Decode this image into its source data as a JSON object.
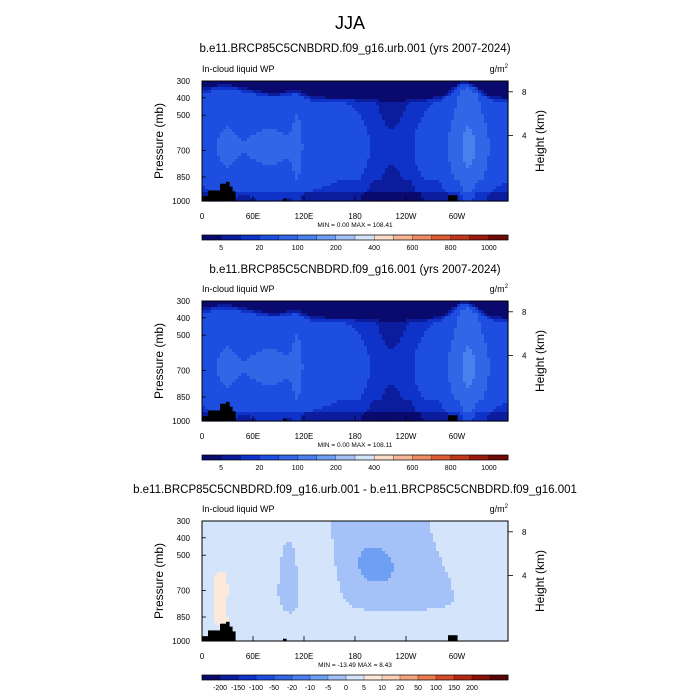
{
  "figure": {
    "title": "JJA"
  },
  "colors": {
    "seq": [
      "#0a0a6e",
      "#0b1d9c",
      "#0f33c8",
      "#1d4ee0",
      "#3166e6",
      "#4a80ee",
      "#6f9ff3",
      "#a4c2f7",
      "#d4e4fa",
      "#fbdcc8",
      "#f6b596",
      "#ee8b63",
      "#dd5c36",
      "#c2361c",
      "#9a1a0e",
      "#6e0a05"
    ],
    "diff": [
      "#0a0a6e",
      "#0b1d9c",
      "#0f33c8",
      "#1d4ee0",
      "#3166e6",
      "#4a80ee",
      "#6f9ff3",
      "#a4c2f7",
      "#d4e4fa",
      "#fde9da",
      "#fbd0b4",
      "#f4a57f",
      "#ea7a4f",
      "#d64b27",
      "#b52914",
      "#8a120a",
      "#5a0604"
    ],
    "terrain": "#000000"
  },
  "chart_data": [
    {
      "type": "heatmap",
      "title": "b.e11.BRCP85C5CNBDRD.f09_g16.urb.001 (yrs 2007-2024)",
      "variable": "In-cloud liquid WP",
      "units": "g/m",
      "units_exp": "2",
      "ylabel": "Pressure (mb)",
      "y2label": "Height (km)",
      "yticks": [
        "300",
        "400",
        "500",
        "700",
        "850",
        "1000"
      ],
      "y2ticks": [
        "8",
        "4"
      ],
      "xticks": [
        "0",
        "60E",
        "120E",
        "180",
        "120W",
        "60W"
      ],
      "minmax": "MIN =   0.00  MAX = 108.41",
      "colorbar_labels": [
        "5",
        "20",
        "100",
        "200",
        "400",
        "600",
        "800",
        "1000"
      ],
      "levels": [
        5,
        10,
        20,
        50,
        100,
        150,
        200,
        300,
        400,
        500,
        600,
        700,
        800,
        900,
        1000
      ],
      "field": "liquid"
    },
    {
      "type": "heatmap",
      "title": "b.e11.BRCP85C5CNBDRD.f09_g16.001 (yrs 2007-2024)",
      "variable": "In-cloud liquid WP",
      "units": "g/m",
      "units_exp": "2",
      "ylabel": "Pressure (mb)",
      "y2label": "Height (km)",
      "yticks": [
        "300",
        "400",
        "500",
        "700",
        "850",
        "1000"
      ],
      "y2ticks": [
        "8",
        "4"
      ],
      "xticks": [
        "0",
        "60E",
        "120E",
        "180",
        "120W",
        "60W"
      ],
      "minmax": "MIN =   0.00  MAX = 108.11",
      "colorbar_labels": [
        "5",
        "20",
        "100",
        "200",
        "400",
        "600",
        "800",
        "1000"
      ],
      "levels": [
        5,
        10,
        20,
        50,
        100,
        150,
        200,
        300,
        400,
        500,
        600,
        700,
        800,
        900,
        1000
      ],
      "field": "liquid"
    },
    {
      "type": "heatmap",
      "title": "b.e11.BRCP85C5CNBDRD.f09_g16.urb.001 - b.e11.BRCP85C5CNBDRD.f09_g16.001",
      "variable": "In-cloud liquid WP",
      "units": "g/m",
      "units_exp": "2",
      "ylabel": "Pressure (mb)",
      "y2label": "Height (km)",
      "yticks": [
        "300",
        "400",
        "500",
        "700",
        "850",
        "1000"
      ],
      "y2ticks": [
        "8",
        "4"
      ],
      "xticks": [
        "0",
        "60E",
        "120E",
        "180",
        "120W",
        "60W"
      ],
      "minmax": "MIN = -13.49  MAX =   8.43",
      "colorbar_labels": [
        "-200",
        "-150",
        "-100",
        "-50",
        "-20",
        "-10",
        "-5",
        "0",
        "5",
        "10",
        "20",
        "50",
        "100",
        "150",
        "200"
      ],
      "levels": [
        -200,
        -150,
        -100,
        -50,
        -20,
        -10,
        -5,
        0,
        5,
        10,
        20,
        50,
        100,
        150,
        200
      ],
      "field": "diff"
    }
  ]
}
